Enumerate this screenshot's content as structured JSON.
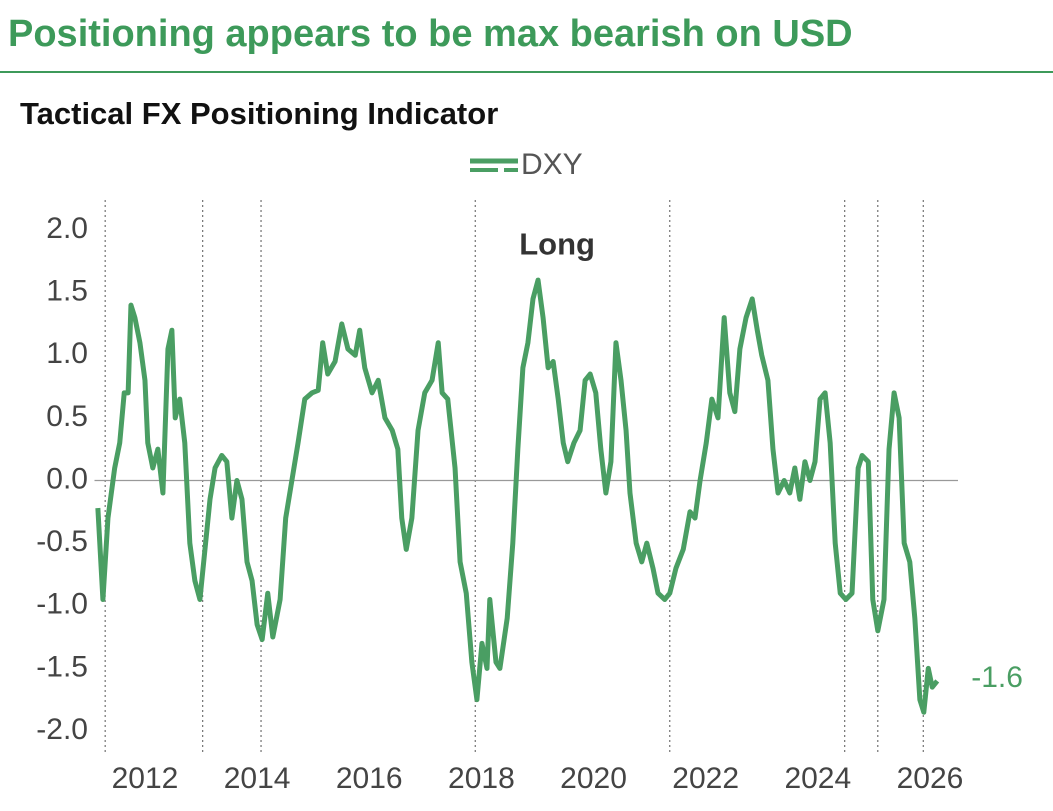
{
  "chart_data": {
    "type": "line",
    "title": "Positioning appears to be max bearish on USD",
    "subtitle": "Tactical FX Positioning Indicator",
    "x": [
      2011.16,
      2011.25,
      2011.34,
      2011.46,
      2011.55,
      2011.63,
      2011.7,
      2011.75,
      2011.82,
      2011.91,
      2012.0,
      2012.05,
      2012.14,
      2012.23,
      2012.32,
      2012.41,
      2012.48,
      2012.54,
      2012.62,
      2012.71,
      2012.8,
      2012.89,
      2012.98,
      2013.07,
      2013.16,
      2013.25,
      2013.37,
      2013.46,
      2013.55,
      2013.64,
      2013.73,
      2013.82,
      2013.91,
      2014.0,
      2014.09,
      2014.19,
      2014.28,
      2014.41,
      2014.51,
      2014.62,
      2014.73,
      2014.85,
      2014.98,
      2015.09,
      2015.17,
      2015.26,
      2015.39,
      2015.51,
      2015.62,
      2015.75,
      2015.83,
      2015.92,
      2016.05,
      2016.16,
      2016.28,
      2016.41,
      2016.51,
      2016.58,
      2016.66,
      2016.76,
      2016.87,
      2016.99,
      2017.12,
      2017.23,
      2017.3,
      2017.4,
      2017.53,
      2017.62,
      2017.73,
      2017.83,
      2017.92,
      2018.01,
      2018.1,
      2018.15,
      2018.26,
      2018.33,
      2018.46,
      2018.56,
      2018.65,
      2018.74,
      2018.83,
      2018.92,
      2019.01,
      2019.1,
      2019.19,
      2019.28,
      2019.37,
      2019.46,
      2019.54,
      2019.65,
      2019.76,
      2019.85,
      2019.94,
      2020.04,
      2020.13,
      2020.22,
      2020.31,
      2020.4,
      2020.49,
      2020.58,
      2020.65,
      2020.76,
      2020.86,
      2020.95,
      2021.06,
      2021.15,
      2021.27,
      2021.36,
      2021.47,
      2021.6,
      2021.72,
      2021.81,
      2021.9,
      2022.01,
      2022.11,
      2022.22,
      2022.33,
      2022.43,
      2022.52,
      2022.61,
      2022.72,
      2022.83,
      2022.92,
      2023.0,
      2023.11,
      2023.2,
      2023.29,
      2023.4,
      2023.5,
      2023.59,
      2023.68,
      2023.77,
      2023.86,
      2023.95,
      2024.04,
      2024.13,
      2024.22,
      2024.31,
      2024.4,
      2024.5,
      2024.61,
      2024.72,
      2024.79,
      2024.9,
      2024.98,
      2025.07,
      2025.18,
      2025.27,
      2025.36,
      2025.45,
      2025.54,
      2025.64,
      2025.73,
      2025.82,
      2025.89,
      2025.97,
      2026.04,
      2026.13
    ],
    "series": [
      {
        "name": "DXY",
        "color": "#4a9e63",
        "values": [
          -0.22,
          -0.95,
          -0.3,
          0.1,
          0.3,
          0.7,
          0.7,
          1.4,
          1.3,
          1.1,
          0.8,
          0.3,
          0.1,
          0.25,
          -0.1,
          1.05,
          1.2,
          0.5,
          0.65,
          0.3,
          -0.5,
          -0.8,
          -0.95,
          -0.55,
          -0.15,
          0.1,
          0.2,
          0.15,
          -0.3,
          0.0,
          -0.15,
          -0.65,
          -0.8,
          -1.15,
          -1.27,
          -0.9,
          -1.25,
          -0.95,
          -0.3,
          0.0,
          0.3,
          0.65,
          0.7,
          0.72,
          1.1,
          0.85,
          0.95,
          1.25,
          1.05,
          1.0,
          1.2,
          0.9,
          0.7,
          0.8,
          0.5,
          0.4,
          0.25,
          -0.3,
          -0.55,
          -0.3,
          0.4,
          0.7,
          0.8,
          1.1,
          0.7,
          0.65,
          0.1,
          -0.65,
          -0.9,
          -1.45,
          -1.75,
          -1.3,
          -1.5,
          -0.95,
          -1.45,
          -1.5,
          -1.1,
          -0.5,
          0.25,
          0.9,
          1.1,
          1.45,
          1.6,
          1.3,
          0.9,
          0.95,
          0.65,
          0.3,
          0.15,
          0.3,
          0.4,
          0.8,
          0.85,
          0.7,
          0.25,
          -0.1,
          0.15,
          1.1,
          0.8,
          0.4,
          -0.1,
          -0.5,
          -0.65,
          -0.5,
          -0.7,
          -0.9,
          -0.95,
          -0.9,
          -0.7,
          -0.55,
          -0.25,
          -0.3,
          0.0,
          0.3,
          0.65,
          0.5,
          1.3,
          0.7,
          0.55,
          1.05,
          1.3,
          1.45,
          1.2,
          1.0,
          0.8,
          0.25,
          -0.1,
          0.0,
          -0.1,
          0.1,
          -0.15,
          0.15,
          0.0,
          0.15,
          0.65,
          0.7,
          0.3,
          -0.5,
          -0.9,
          -0.95,
          -0.9,
          0.1,
          0.2,
          0.15,
          -0.95,
          -1.2,
          -0.95,
          0.25,
          0.7,
          0.5,
          -0.5,
          -0.65,
          -1.1,
          -1.75,
          -1.85,
          -1.5,
          -1.65,
          -1.6
        ]
      }
    ],
    "xlim": [
      2011.1,
      2026.5
    ],
    "xticks": [
      2012,
      2014,
      2016,
      2018,
      2020,
      2022,
      2024,
      2026
    ],
    "ylim": [
      -2.0,
      2.0
    ],
    "yticks": [
      {
        "value": 2.0,
        "label": "2.0"
      },
      {
        "value": 1.5,
        "label": "1.5"
      },
      {
        "value": 1.0,
        "label": "1.0"
      },
      {
        "value": 0.5,
        "label": "0.5"
      },
      {
        "value": 0.0,
        "label": "0.0"
      },
      {
        "value": -0.5,
        "label": "-0.5"
      },
      {
        "value": -1.0,
        "label": "-1.0"
      },
      {
        "value": -1.5,
        "label": "-1.5"
      },
      {
        "value": -2.0,
        "label": "-2.0"
      }
    ],
    "reference_line": 0.0,
    "vertical_lines": [
      2011.29,
      2013.03,
      2014.07,
      2017.89,
      2021.36,
      2024.48,
      2025.07,
      2025.88
    ],
    "annotations": [
      {
        "text": "Long",
        "x": 2019.35,
        "y": 1.94
      },
      {
        "text": "-1.6",
        "x": 2026.13,
        "y": -1.6
      }
    ],
    "legend": "top"
  }
}
